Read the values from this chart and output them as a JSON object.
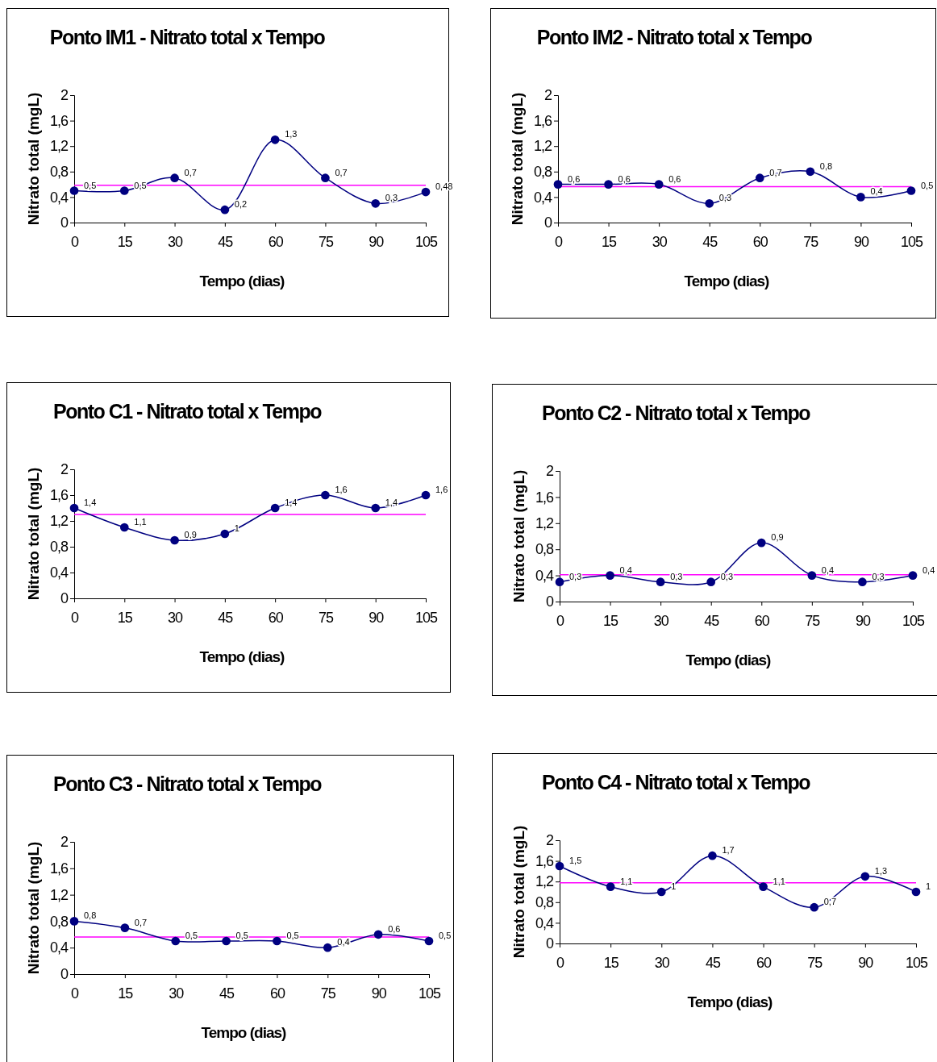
{
  "chart_data": [
    {
      "type": "line",
      "title": "Ponto IM1 - Nitrato total x Tempo",
      "xlabel": "Tempo (dias)",
      "ylabel": "Nitrato total (mgL)",
      "x": [
        0,
        15,
        30,
        45,
        60,
        75,
        90,
        105
      ],
      "xlim": [
        0,
        105
      ],
      "xticks": [
        0,
        15,
        30,
        45,
        60,
        75,
        90,
        105
      ],
      "ylim": [
        0,
        2
      ],
      "yticks": [
        {
          "value": 0,
          "label": "0"
        },
        {
          "value": 0.4,
          "label": "0,4"
        },
        {
          "value": 0.8,
          "label": "0,8"
        },
        {
          "value": 1.2,
          "label": "1,2"
        },
        {
          "value": 1.6,
          "label": "1,6"
        },
        {
          "value": 2,
          "label": "2"
        }
      ],
      "series": [
        {
          "color": "#000080",
          "values": [
            0.5,
            0.5,
            0.7,
            0.2,
            1.3,
            0.7,
            0.3,
            0.48
          ],
          "value_labels": [
            "0,5",
            "0,5",
            "0,7",
            "0,2",
            "1,3",
            "0,7",
            "0,3",
            "0,48"
          ]
        }
      ],
      "marker": "circle",
      "line_style": "solid",
      "ref_lines": [
        {
          "axis": "y",
          "value": 0.585,
          "color": "#ff00ff"
        }
      ],
      "grid": false
    },
    {
      "type": "line",
      "title": "Ponto IM2 - Nitrato total x Tempo",
      "xlabel": "Tempo (dias)",
      "ylabel": "Nitrato total (mgL)",
      "x": [
        0,
        15,
        30,
        45,
        60,
        75,
        90,
        105
      ],
      "xlim": [
        0,
        105
      ],
      "xticks": [
        0,
        15,
        30,
        45,
        60,
        75,
        90,
        105
      ],
      "ylim": [
        0,
        2
      ],
      "yticks": [
        {
          "value": 0,
          "label": "0"
        },
        {
          "value": 0.4,
          "label": "0,4"
        },
        {
          "value": 0.8,
          "label": "0,8"
        },
        {
          "value": 1.2,
          "label": "1,2"
        },
        {
          "value": 1.6,
          "label": "1,6"
        },
        {
          "value": 2,
          "label": "2"
        }
      ],
      "series": [
        {
          "color": "#000080",
          "values": [
            0.6,
            0.6,
            0.6,
            0.3,
            0.7,
            0.8,
            0.4,
            0.5
          ],
          "value_labels": [
            "0,6",
            "0,6",
            "0,6",
            "0,3",
            "0,7",
            "0,8",
            "0,4",
            "0,5"
          ]
        }
      ],
      "marker": "circle",
      "line_style": "solid",
      "ref_lines": [
        {
          "axis": "y",
          "value": 0.5625,
          "color": "#ff00ff"
        }
      ],
      "grid": false
    },
    {
      "type": "line",
      "title": "Ponto C1 - Nitrato total x Tempo",
      "xlabel": "Tempo (dias)",
      "ylabel": "Nitrato total (mgL)",
      "x": [
        0,
        15,
        30,
        45,
        60,
        75,
        90,
        105
      ],
      "xlim": [
        0,
        105
      ],
      "xticks": [
        0,
        15,
        30,
        45,
        60,
        75,
        90,
        105
      ],
      "ylim": [
        0,
        2
      ],
      "yticks": [
        {
          "value": 0,
          "label": "0"
        },
        {
          "value": 0.4,
          "label": "0,4"
        },
        {
          "value": 0.8,
          "label": "0,8"
        },
        {
          "value": 1.2,
          "label": "1,2"
        },
        {
          "value": 1.6,
          "label": "1,6"
        },
        {
          "value": 2,
          "label": "2"
        }
      ],
      "series": [
        {
          "color": "#000080",
          "values": [
            1.4,
            1.1,
            0.9,
            1,
            1.4,
            1.6,
            1.4,
            1.6
          ],
          "value_labels": [
            "1,4",
            "1,1",
            "0,9",
            "1",
            "1,4",
            "1,6",
            "1,4",
            "1,6"
          ]
        }
      ],
      "marker": "circle",
      "line_style": "solid",
      "ref_lines": [
        {
          "axis": "y",
          "value": 1.3,
          "color": "#ff00ff"
        }
      ],
      "grid": false
    },
    {
      "type": "line",
      "title": "Ponto C2 - Nitrato total x Tempo",
      "xlabel": "Tempo (dias)",
      "ylabel": "Nitrato total (mgL)",
      "x": [
        0,
        15,
        30,
        45,
        60,
        75,
        90,
        105
      ],
      "xlim": [
        0,
        105
      ],
      "xticks": [
        0,
        15,
        30,
        45,
        60,
        75,
        90,
        105
      ],
      "ylim": [
        0,
        2
      ],
      "yticks": [
        {
          "value": 0,
          "label": "0"
        },
        {
          "value": 0.4,
          "label": "0,4"
        },
        {
          "value": 0.8,
          "label": "0,8"
        },
        {
          "value": 1.2,
          "label": "1,2"
        },
        {
          "value": 1.6,
          "label": "1,6"
        },
        {
          "value": 2,
          "label": "2"
        }
      ],
      "series": [
        {
          "color": "#000080",
          "values": [
            0.3,
            0.4,
            0.3,
            0.3,
            0.9,
            0.4,
            0.3,
            0.4
          ],
          "value_labels": [
            "0,3",
            "0,4",
            "0,3",
            "0,3",
            "0,9",
            "0,4",
            "0,3",
            "0,4"
          ]
        }
      ],
      "marker": "circle",
      "line_style": "solid",
      "ref_lines": [
        {
          "axis": "y",
          "value": 0.41,
          "color": "#ff00ff"
        }
      ],
      "grid": false
    },
    {
      "type": "line",
      "title": "Ponto C3 - Nitrato total x Tempo",
      "xlabel": "Tempo (dias)",
      "ylabel": "Nitrato total (mgL)",
      "x": [
        0,
        15,
        30,
        45,
        60,
        75,
        90,
        105
      ],
      "xlim": [
        0,
        105
      ],
      "xticks": [
        0,
        15,
        30,
        45,
        60,
        75,
        90,
        105
      ],
      "ylim": [
        0,
        2
      ],
      "yticks": [
        {
          "value": 0,
          "label": "0"
        },
        {
          "value": 0.4,
          "label": "0,4"
        },
        {
          "value": 0.8,
          "label": "0,8"
        },
        {
          "value": 1.2,
          "label": "1,2"
        },
        {
          "value": 1.6,
          "label": "1,6"
        },
        {
          "value": 2,
          "label": "2"
        }
      ],
      "series": [
        {
          "color": "#000080",
          "values": [
            0.8,
            0.7,
            0.5,
            0.5,
            0.5,
            0.4,
            0.6,
            0.5
          ],
          "value_labels": [
            "0,8",
            "0,7",
            "0,5",
            "0,5",
            "0,5",
            "0,4",
            "0,6",
            "0,5"
          ]
        }
      ],
      "marker": "circle",
      "line_style": "solid",
      "ref_lines": [
        {
          "axis": "y",
          "value": 0.5625,
          "color": "#ff00ff"
        }
      ],
      "grid": false
    },
    {
      "type": "line",
      "title": "Ponto C4 - Nitrato total x Tempo",
      "xlabel": "Tempo (dias)",
      "ylabel": "Nitrato total (mgL)",
      "x": [
        0,
        15,
        30,
        45,
        60,
        75,
        90,
        105
      ],
      "xlim": [
        0,
        105
      ],
      "xticks": [
        0,
        15,
        30,
        45,
        60,
        75,
        90,
        105
      ],
      "ylim": [
        0,
        2
      ],
      "yticks": [
        {
          "value": 0,
          "label": "0"
        },
        {
          "value": 0.4,
          "label": "0,4"
        },
        {
          "value": 0.8,
          "label": "0,8"
        },
        {
          "value": 1.2,
          "label": "1,2"
        },
        {
          "value": 1.6,
          "label": "1,6"
        },
        {
          "value": 2,
          "label": "2"
        }
      ],
      "series": [
        {
          "color": "#000080",
          "values": [
            1.5,
            1.1,
            1,
            1.7,
            1.1,
            0.7,
            1.3,
            1
          ],
          "value_labels": [
            "1,5",
            "1,1",
            "1",
            "1,7",
            "1,1",
            "0,7",
            "1,3",
            "1"
          ]
        }
      ],
      "marker": "circle",
      "line_style": "solid",
      "ref_lines": [
        {
          "axis": "y",
          "value": 1.175,
          "color": "#ff00ff"
        }
      ],
      "grid": false
    }
  ]
}
